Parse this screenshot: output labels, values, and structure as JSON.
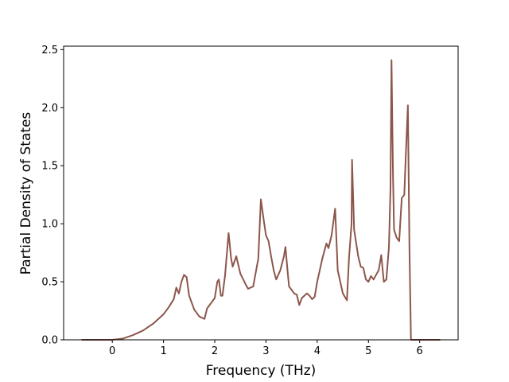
{
  "chart_data": {
    "type": "line",
    "xlabel": "Frequency (THz)",
    "ylabel": "Partial Density of States",
    "xlim": [
      -0.95,
      6.75
    ],
    "ylim": [
      0,
      2.53
    ],
    "xticks": [
      0,
      1,
      2,
      3,
      4,
      5,
      6
    ],
    "yticks": [
      {
        "value": 0,
        "label": "0.0"
      },
      {
        "value": 0.5,
        "label": "0.5"
      },
      {
        "value": 1,
        "label": "1.0"
      },
      {
        "value": 1.5,
        "label": "1.5"
      },
      {
        "value": 2,
        "label": "2.0"
      },
      {
        "value": 2.5,
        "label": "2.5"
      }
    ],
    "x": [
      -0.6,
      0,
      0.2,
      0.4,
      0.6,
      0.8,
      1.0,
      1.1,
      1.2,
      1.25,
      1.3,
      1.35,
      1.4,
      1.45,
      1.5,
      1.6,
      1.7,
      1.8,
      1.85,
      1.9,
      2.0,
      2.05,
      2.08,
      2.12,
      2.15,
      2.2,
      2.27,
      2.32,
      2.35,
      2.42,
      2.5,
      2.6,
      2.65,
      2.75,
      2.85,
      2.9,
      2.95,
      3.0,
      3.05,
      3.1,
      3.15,
      3.2,
      3.28,
      3.35,
      3.38,
      3.42,
      3.45,
      3.55,
      3.6,
      3.65,
      3.7,
      3.8,
      3.85,
      3.9,
      3.95,
      4.0,
      4.1,
      4.18,
      4.22,
      4.28,
      4.35,
      4.4,
      4.5,
      4.58,
      4.62,
      4.67,
      4.68,
      4.72,
      4.8,
      4.85,
      4.9,
      4.95,
      5.0,
      5.05,
      5.1,
      5.15,
      5.2,
      5.25,
      5.3,
      5.35,
      5.4,
      5.43,
      5.45,
      5.48,
      5.5,
      5.55,
      5.6,
      5.65,
      5.7,
      5.73,
      5.77,
      5.8,
      5.83,
      6.0,
      6.4
    ],
    "series": [
      {
        "color": "#8c564b",
        "values": [
          0,
          0,
          0.01,
          0.04,
          0.08,
          0.14,
          0.22,
          0.28,
          0.35,
          0.45,
          0.4,
          0.5,
          0.56,
          0.54,
          0.38,
          0.26,
          0.2,
          0.18,
          0.27,
          0.3,
          0.36,
          0.5,
          0.52,
          0.38,
          0.38,
          0.55,
          0.92,
          0.7,
          0.63,
          0.72,
          0.57,
          0.48,
          0.44,
          0.46,
          0.7,
          1.21,
          1.05,
          0.9,
          0.85,
          0.72,
          0.6,
          0.52,
          0.6,
          0.72,
          0.8,
          0.6,
          0.46,
          0.4,
          0.39,
          0.3,
          0.36,
          0.4,
          0.38,
          0.35,
          0.37,
          0.5,
          0.7,
          0.83,
          0.79,
          0.9,
          1.13,
          0.6,
          0.4,
          0.34,
          0.7,
          1.0,
          1.55,
          0.95,
          0.72,
          0.63,
          0.62,
          0.52,
          0.5,
          0.55,
          0.52,
          0.56,
          0.6,
          0.73,
          0.5,
          0.52,
          0.8,
          1.3,
          2.41,
          1.4,
          0.95,
          0.88,
          0.85,
          1.22,
          1.25,
          1.6,
          2.02,
          0.8,
          0,
          0,
          0
        ]
      }
    ]
  }
}
